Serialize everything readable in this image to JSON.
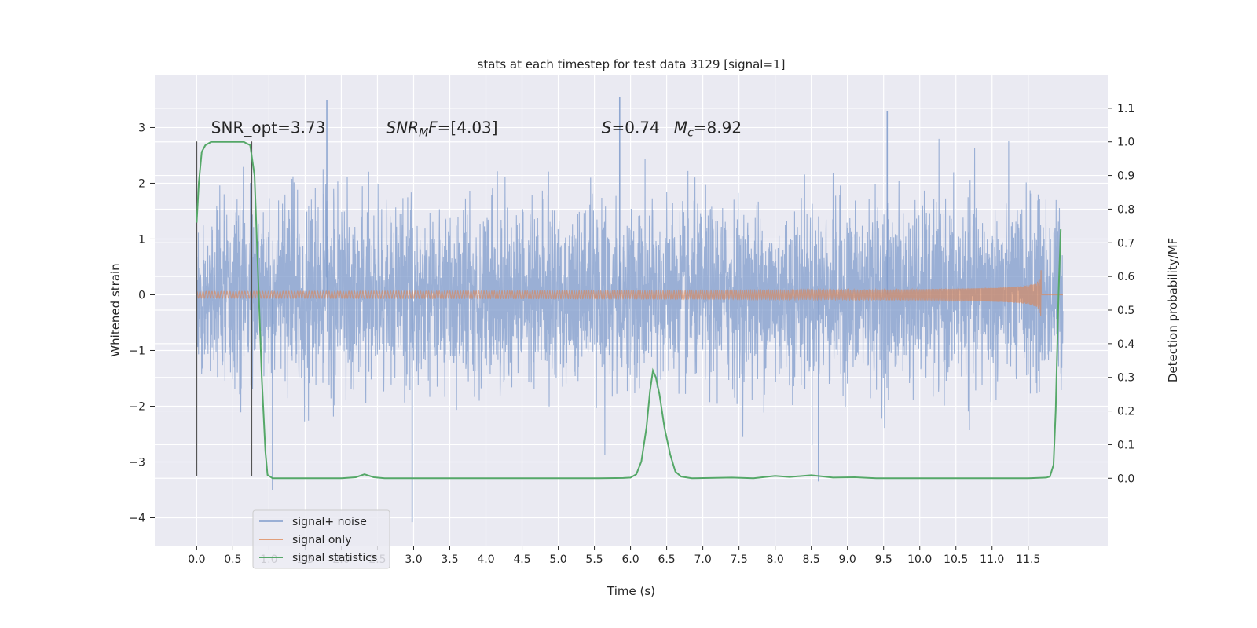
{
  "chart_data": {
    "type": "line",
    "title": "stats at each timestep for test data 3129 [signal=1]",
    "xlabel": "Time (s)",
    "ylabel_left": "Whitened strain",
    "ylabel_right": "Detection probability/MF",
    "xlim": [
      -0.58,
      12.6
    ],
    "ylim_left": [
      -4.5,
      3.95
    ],
    "ylim_right": [
      -0.2,
      1.2
    ],
    "x_ticks": [
      0.0,
      0.5,
      1.0,
      1.5,
      2.0,
      2.5,
      3.0,
      3.5,
      4.0,
      4.5,
      5.0,
      5.5,
      6.0,
      6.5,
      7.0,
      7.5,
      8.0,
      8.5,
      9.0,
      9.5,
      10.0,
      10.5,
      11.0,
      11.5
    ],
    "x_tick_labels": [
      "0.0",
      "0.5",
      "1.0",
      "1.5",
      "2.0",
      "2.5",
      "3.0",
      "3.5",
      "4.0",
      "4.5",
      "5.0",
      "5.5",
      "6.0",
      "6.5",
      "7.0",
      "7.5",
      "8.0",
      "8.5",
      "9.0",
      "9.5",
      "10.0",
      "10.5",
      "11.0",
      "11.5"
    ],
    "y_ticks_left": [
      -4,
      -3,
      -2,
      -1,
      0,
      1,
      2,
      3
    ],
    "y_tick_labels_left": [
      "−4",
      "−3",
      "−2",
      "−1",
      "0",
      "1",
      "2",
      "3"
    ],
    "y_ticks_right": [
      0.0,
      0.1,
      0.2,
      0.3,
      0.4,
      0.5,
      0.6,
      0.7,
      0.8,
      0.9,
      1.0,
      1.1
    ],
    "y_tick_labels_right": [
      "0.0",
      "0.1",
      "0.2",
      "0.3",
      "0.4",
      "0.5",
      "0.6",
      "0.7",
      "0.8",
      "0.9",
      "1.0",
      "1.1"
    ],
    "grid": true,
    "legend_position": "lower-left",
    "series": [
      {
        "name": "signal+ noise",
        "axis": "left",
        "color": "#7f9bcb",
        "description_range": [
          0.0,
          11.98
        ],
        "envelope_typical": 1.5,
        "notable_extremes": [
          {
            "x": 1.8,
            "y": 3.5
          },
          {
            "x": 5.85,
            "y": 3.55
          },
          {
            "x": 9.55,
            "y": 3.3
          },
          {
            "x": 2.98,
            "y": -4.08
          },
          {
            "x": 1.05,
            "y": -3.5
          },
          {
            "x": 8.6,
            "y": -3.35
          }
        ]
      },
      {
        "name": "signal only",
        "axis": "left",
        "color": "#dd8452",
        "chirp_end_time": 11.68,
        "chirp_peak_amplitude": 0.5
      },
      {
        "name": "signal statistics",
        "axis": "right",
        "color": "#55a868",
        "points": [
          [
            0.0,
            0.76
          ],
          [
            0.03,
            0.88
          ],
          [
            0.07,
            0.97
          ],
          [
            0.12,
            0.99
          ],
          [
            0.2,
            1.0
          ],
          [
            0.3,
            1.0
          ],
          [
            0.5,
            1.0
          ],
          [
            0.65,
            1.0
          ],
          [
            0.74,
            0.99
          ],
          [
            0.8,
            0.9
          ],
          [
            0.85,
            0.6
          ],
          [
            0.9,
            0.3
          ],
          [
            0.95,
            0.08
          ],
          [
            0.98,
            0.01
          ],
          [
            1.05,
            0.0
          ],
          [
            1.5,
            0.0
          ],
          [
            2.0,
            0.0
          ],
          [
            2.2,
            0.003
          ],
          [
            2.32,
            0.012
          ],
          [
            2.45,
            0.003
          ],
          [
            2.6,
            0.0
          ],
          [
            3.0,
            0.0
          ],
          [
            4.0,
            0.0
          ],
          [
            5.0,
            0.0
          ],
          [
            5.5,
            0.0
          ],
          [
            5.9,
            0.001
          ],
          [
            6.0,
            0.002
          ],
          [
            6.08,
            0.012
          ],
          [
            6.15,
            0.05
          ],
          [
            6.22,
            0.15
          ],
          [
            6.27,
            0.26
          ],
          [
            6.31,
            0.32
          ],
          [
            6.35,
            0.3
          ],
          [
            6.4,
            0.25
          ],
          [
            6.47,
            0.15
          ],
          [
            6.55,
            0.07
          ],
          [
            6.62,
            0.02
          ],
          [
            6.7,
            0.005
          ],
          [
            6.85,
            0.0
          ],
          [
            7.4,
            0.002
          ],
          [
            7.7,
            0.0
          ],
          [
            8.0,
            0.007
          ],
          [
            8.2,
            0.004
          ],
          [
            8.5,
            0.009
          ],
          [
            8.8,
            0.002
          ],
          [
            9.1,
            0.003
          ],
          [
            9.4,
            0.0
          ],
          [
            10.0,
            0.0
          ],
          [
            11.0,
            0.0
          ],
          [
            11.5,
            0.0
          ],
          [
            11.75,
            0.002
          ],
          [
            11.8,
            0.005
          ],
          [
            11.85,
            0.04
          ],
          [
            11.88,
            0.2
          ],
          [
            11.92,
            0.55
          ],
          [
            11.95,
            0.74
          ]
        ]
      }
    ],
    "vertical_lines": [
      {
        "x": 0.0,
        "ymin": -3.25,
        "ymax": 2.75,
        "color": "#555555"
      },
      {
        "x": 0.76,
        "ymin": -3.25,
        "ymax": 2.75,
        "color": "#555555"
      }
    ],
    "annotations": [
      {
        "label": "SNR_opt=3.73",
        "x": 0.2,
        "y": 2.9
      },
      {
        "label_parts": [
          {
            "t": "SNR",
            "i": true
          },
          {
            "t": "M",
            "i": true,
            "sub": true
          },
          {
            "t": "F",
            "i": true
          },
          {
            "t": "=[4.03]"
          }
        ],
        "x": 2.62,
        "y": 2.9
      },
      {
        "label_parts": [
          {
            "t": "S",
            "i": true
          },
          {
            "t": "=0.74"
          }
        ],
        "x": 5.6,
        "y": 2.9
      },
      {
        "label_parts": [
          {
            "t": "M",
            "i": true
          },
          {
            "t": "c",
            "i": true,
            "sub": true
          },
          {
            "t": "=8.92"
          }
        ],
        "x": 6.6,
        "y": 2.9
      }
    ]
  }
}
